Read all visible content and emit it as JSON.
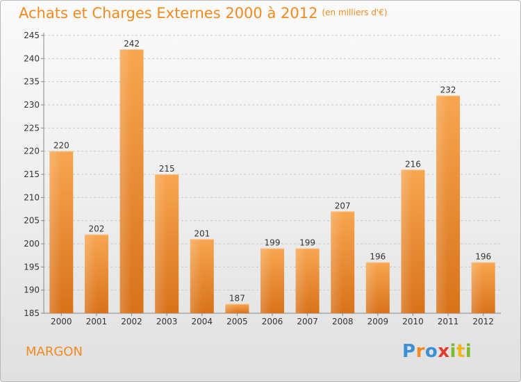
{
  "title": "Achats et Charges Externes 2000 à 2012",
  "unit": "(en milliers d'€)",
  "commune": "MARGON",
  "logo": {
    "letters": [
      {
        "char": "P",
        "color": "#3b8fd4"
      },
      {
        "char": "r",
        "color": "#f28a1d"
      },
      {
        "char": "o",
        "color": "#3b8fd4"
      },
      {
        "char": "x",
        "color": "#e23b2f"
      },
      {
        "char": "i",
        "color": "#7dbb2d"
      },
      {
        "char": "t",
        "color": "#f2b61d"
      },
      {
        "char": "i",
        "color": "#7dbb2d"
      }
    ]
  },
  "colors": {
    "title": "#f28a1d",
    "bar_top": "#f7a650",
    "bar_bottom": "#d8721a"
  },
  "chart_data": {
    "type": "bar",
    "categories": [
      "2000",
      "2001",
      "2002",
      "2003",
      "2004",
      "2005",
      "2006",
      "2007",
      "2008",
      "2009",
      "2010",
      "2011",
      "2012"
    ],
    "values": [
      220,
      202,
      242,
      215,
      201,
      187,
      199,
      199,
      207,
      196,
      216,
      232,
      196
    ],
    "ylim": [
      185,
      245
    ],
    "yticks": [
      185,
      190,
      195,
      200,
      205,
      210,
      215,
      220,
      225,
      230,
      235,
      240,
      245
    ],
    "grid": "horizontal dashed",
    "data_labels": true
  }
}
